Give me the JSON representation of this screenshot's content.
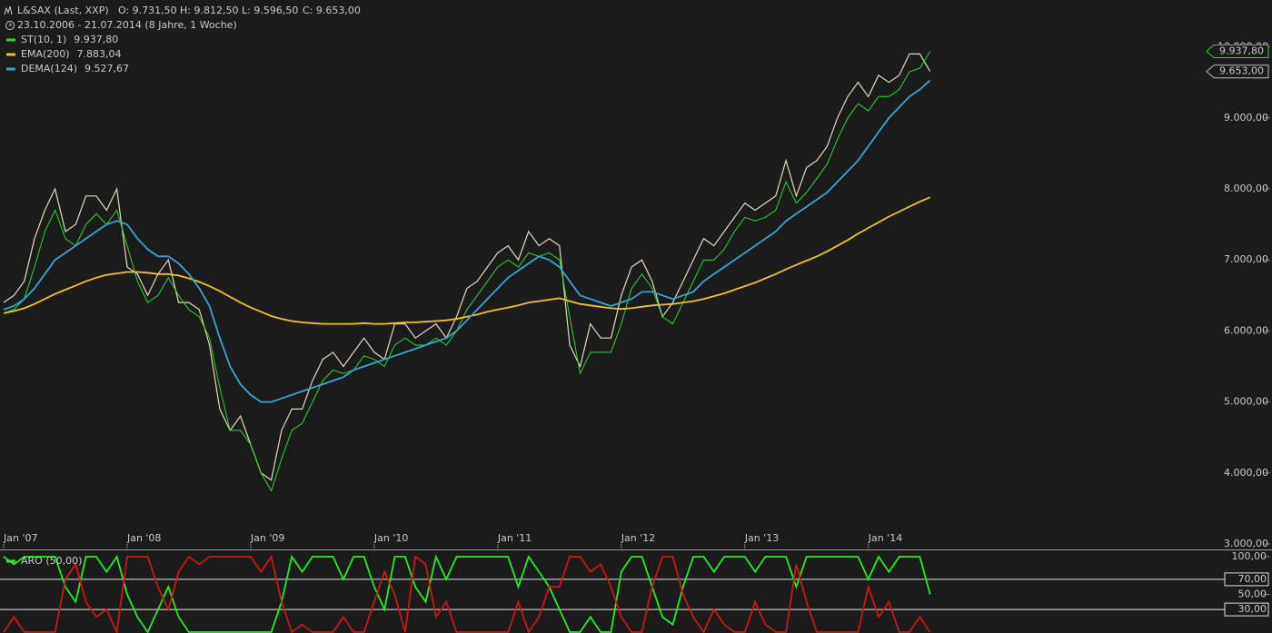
{
  "chart_data": [
    {
      "type": "line",
      "title": "L&SAX (Last, XXP)",
      "ohlc": [
        "O: 9.731,50",
        "H: 9.812,50",
        "L: 9.596,50",
        "C: 9.653,00"
      ],
      "subtitle": "23.10.2006 - 21.07.2014 (8 Jahre, 1 Woche)",
      "last_close_label": "9.653,00",
      "color": "#e6d8b8",
      "categories": [
        "Jan '07",
        null,
        null,
        null,
        null,
        null,
        null,
        null,
        null,
        null,
        null,
        null,
        "Jan '08",
        null,
        null,
        null,
        null,
        null,
        null,
        null,
        null,
        null,
        null,
        null,
        "Jan '09",
        null,
        null,
        null,
        null,
        null,
        null,
        null,
        null,
        null,
        null,
        null,
        "Jan '10",
        null,
        null,
        null,
        null,
        null,
        null,
        null,
        null,
        null,
        null,
        null,
        "Jan '11",
        null,
        null,
        null,
        null,
        null,
        null,
        null,
        null,
        null,
        null,
        null,
        "Jan '12",
        null,
        null,
        null,
        null,
        null,
        null,
        null,
        null,
        null,
        null,
        null,
        "Jan '13",
        null,
        null,
        null,
        null,
        null,
        null,
        null,
        null,
        null,
        null,
        null,
        "Jan '14",
        null,
        null,
        null,
        null,
        null,
        null
      ],
      "values": [
        6400,
        6500,
        6700,
        7300,
        7700,
        8000,
        7400,
        7500,
        7900,
        7900,
        7700,
        8000,
        6900,
        6800,
        6500,
        6800,
        7000,
        6400,
        6400,
        6300,
        5800,
        4900,
        4600,
        4800,
        4400,
        4000,
        3900,
        4600,
        4900,
        4900,
        5300,
        5600,
        5700,
        5500,
        5700,
        5900,
        5700,
        5600,
        6100,
        6100,
        5900,
        6000,
        6100,
        5900,
        6200,
        6600,
        6700,
        6900,
        7100,
        7200,
        7000,
        7400,
        7200,
        7300,
        7200,
        5800,
        5500,
        6100,
        5900,
        5900,
        6500,
        6900,
        7000,
        6700,
        6200,
        6400,
        6700,
        7000,
        7300,
        7200,
        7400,
        7600,
        7800,
        7700,
        7800,
        7900,
        8400,
        7900,
        8300,
        8400,
        8600,
        9000,
        9300,
        9500,
        9300,
        9600,
        9500,
        9600,
        9900,
        9900,
        9653
      ],
      "series": [
        {
          "name": "ST(10, 1)",
          "last": "9.937,80",
          "color": "#2bd82b",
          "values": [
            6250,
            6300,
            6450,
            6900,
            7400,
            7700,
            7300,
            7200,
            7500,
            7650,
            7500,
            7700,
            7200,
            6700,
            6400,
            6500,
            6750,
            6500,
            6300,
            6200,
            5900,
            5200,
            4600,
            4600,
            4400,
            4000,
            3750,
            4200,
            4600,
            4700,
            5000,
            5300,
            5450,
            5400,
            5450,
            5650,
            5600,
            5500,
            5800,
            5900,
            5800,
            5800,
            5900,
            5800,
            6000,
            6300,
            6500,
            6700,
            6900,
            7000,
            6900,
            7100,
            7050,
            7100,
            7000,
            6200,
            5400,
            5700,
            5700,
            5700,
            6100,
            6600,
            6800,
            6600,
            6200,
            6100,
            6400,
            6700,
            7000,
            7000,
            7150,
            7400,
            7600,
            7550,
            7600,
            7700,
            8100,
            7800,
            7950,
            8150,
            8350,
            8700,
            9000,
            9200,
            9100,
            9300,
            9300,
            9400,
            9650,
            9700,
            9937.8
          ]
        },
        {
          "name": "EMA(200)",
          "last": "7.883,04",
          "color": "#f2c318",
          "values": [
            6250,
            6280,
            6320,
            6380,
            6450,
            6520,
            6580,
            6640,
            6700,
            6750,
            6790,
            6810,
            6830,
            6830,
            6820,
            6800,
            6800,
            6780,
            6740,
            6690,
            6630,
            6560,
            6480,
            6400,
            6330,
            6270,
            6210,
            6170,
            6140,
            6120,
            6110,
            6100,
            6100,
            6100,
            6100,
            6110,
            6100,
            6100,
            6110,
            6120,
            6120,
            6130,
            6140,
            6150,
            6170,
            6200,
            6230,
            6270,
            6300,
            6330,
            6360,
            6400,
            6420,
            6440,
            6460,
            6420,
            6380,
            6360,
            6340,
            6320,
            6310,
            6320,
            6340,
            6360,
            6370,
            6380,
            6400,
            6420,
            6450,
            6490,
            6530,
            6580,
            6630,
            6680,
            6740,
            6800,
            6870,
            6930,
            6990,
            7050,
            7120,
            7200,
            7280,
            7370,
            7450,
            7530,
            7610,
            7680,
            7750,
            7820,
            7883.04
          ]
        },
        {
          "name": "DEMA(124)",
          "last": "9.527,67",
          "color": "#3aa3d4",
          "values": [
            6300,
            6350,
            6450,
            6600,
            6800,
            7000,
            7100,
            7200,
            7300,
            7400,
            7500,
            7550,
            7500,
            7300,
            7150,
            7050,
            7050,
            6950,
            6800,
            6600,
            6350,
            5900,
            5500,
            5250,
            5100,
            5000,
            5000,
            5050,
            5100,
            5150,
            5200,
            5250,
            5300,
            5350,
            5450,
            5500,
            5550,
            5600,
            5650,
            5700,
            5750,
            5800,
            5850,
            5900,
            6000,
            6150,
            6300,
            6450,
            6600,
            6750,
            6850,
            6950,
            7050,
            7000,
            6900,
            6700,
            6500,
            6450,
            6400,
            6350,
            6400,
            6450,
            6550,
            6550,
            6500,
            6450,
            6500,
            6550,
            6700,
            6800,
            6900,
            7000,
            7100,
            7200,
            7300,
            7400,
            7550,
            7650,
            7750,
            7850,
            7950,
            8100,
            8250,
            8400,
            8600,
            8800,
            9000,
            9150,
            9300,
            9400,
            9527.67
          ]
        }
      ],
      "ylim": [
        3000,
        10660
      ],
      "yticks": [
        {
          "value": 3000,
          "label": "3.000,00"
        },
        {
          "value": 4000,
          "label": "4.000,00"
        },
        {
          "value": 5000,
          "label": "5.000,00"
        },
        {
          "value": 6000,
          "label": "6.000,00"
        },
        {
          "value": 7000,
          "label": "7.000,00"
        },
        {
          "value": 8000,
          "label": "8.000,00"
        },
        {
          "value": 9000,
          "label": "9.000,00"
        },
        {
          "value": 10000,
          "label": "10.000,00"
        }
      ]
    },
    {
      "type": "line",
      "title": "ARO (50,00)",
      "series": [
        {
          "color": "#22ee22",
          "values": [
            100,
            90,
            100,
            100,
            100,
            100,
            60,
            40,
            100,
            100,
            80,
            100,
            50,
            20,
            0,
            30,
            60,
            20,
            0,
            0,
            0,
            0,
            0,
            0,
            0,
            0,
            0,
            40,
            100,
            80,
            100,
            100,
            100,
            70,
            100,
            100,
            60,
            30,
            100,
            100,
            60,
            40,
            100,
            70,
            100,
            100,
            100,
            100,
            100,
            100,
            60,
            100,
            80,
            60,
            30,
            0,
            0,
            20,
            0,
            0,
            80,
            100,
            100,
            60,
            20,
            10,
            60,
            100,
            100,
            80,
            100,
            100,
            100,
            80,
            100,
            100,
            100,
            60,
            100,
            100,
            100,
            100,
            100,
            100,
            70,
            100,
            80,
            100,
            100,
            100,
            50
          ]
        },
        {
          "color": "#c81a10",
          "values": [
            0,
            20,
            0,
            0,
            0,
            0,
            70,
            90,
            40,
            20,
            30,
            0,
            100,
            100,
            100,
            60,
            30,
            80,
            100,
            90,
            100,
            100,
            100,
            100,
            100,
            80,
            100,
            40,
            0,
            10,
            0,
            0,
            0,
            20,
            0,
            0,
            40,
            80,
            50,
            0,
            100,
            90,
            20,
            40,
            0,
            0,
            0,
            0,
            0,
            0,
            40,
            0,
            20,
            60,
            60,
            100,
            100,
            80,
            90,
            60,
            20,
            0,
            0,
            60,
            100,
            100,
            50,
            20,
            0,
            30,
            10,
            0,
            0,
            40,
            10,
            0,
            0,
            90,
            40,
            0,
            0,
            0,
            0,
            0,
            60,
            20,
            40,
            0,
            0,
            20,
            0
          ]
        }
      ],
      "ylim": [
        0,
        100
      ],
      "yticks": [
        {
          "value": 100,
          "label": "100,00"
        },
        {
          "value": 70,
          "label": "70,00"
        },
        {
          "value": 50,
          "label": "50,00"
        },
        {
          "value": 30,
          "label": "30,00"
        }
      ],
      "threshold_ticks": [
        1,
        3
      ]
    }
  ]
}
